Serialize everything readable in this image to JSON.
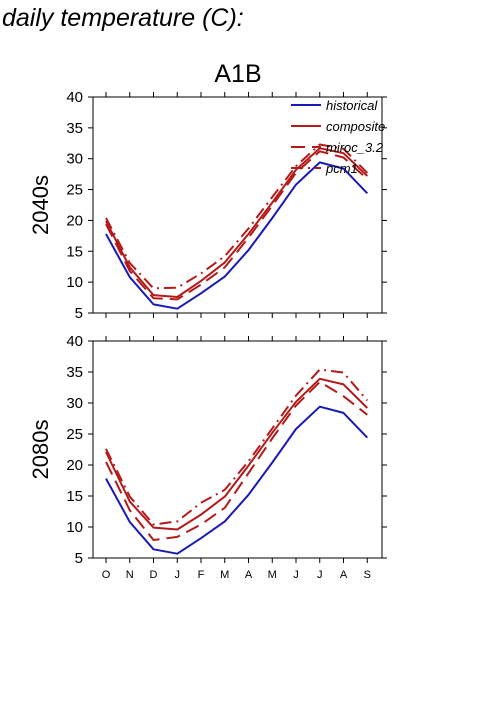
{
  "page": {
    "title": "daily temperature (C):"
  },
  "colors": {
    "historical": "#1a1ab4",
    "projections": "#b41a1a"
  },
  "chart_data": [
    {
      "type": "line",
      "title": "A1B",
      "row_label": "2040s",
      "ylim": [
        5,
        40
      ],
      "yticks": [
        5,
        10,
        15,
        20,
        25,
        30,
        35,
        40
      ],
      "categories": [
        "O",
        "N",
        "D",
        "J",
        "F",
        "M",
        "A",
        "M",
        "J",
        "J",
        "A",
        "S"
      ],
      "legend": {
        "placement": "top-right"
      },
      "series": [
        {
          "name": "historical",
          "style": "solid",
          "color": "#1a1ab4",
          "values": [
            17.8,
            10.8,
            6.4,
            5.7,
            8.2,
            10.9,
            15.2,
            20.4,
            25.8,
            29.4,
            28.4,
            24.4
          ]
        },
        {
          "name": "composite",
          "style": "solid",
          "color": "#b41a1a",
          "values": [
            19.9,
            12.4,
            7.9,
            7.6,
            10.2,
            13.2,
            17.8,
            22.9,
            28.2,
            31.7,
            30.9,
            27.2
          ]
        },
        {
          "name": "miroc_3.2",
          "style": "dashed",
          "color": "#b41a1a",
          "values": [
            19.4,
            11.8,
            7.4,
            7.2,
            9.6,
            12.4,
            17.2,
            22.4,
            27.7,
            31.2,
            30.2,
            26.7
          ]
        },
        {
          "name": "pcm1",
          "style": "dashdot",
          "color": "#b41a1a",
          "values": [
            20.4,
            13.1,
            9.0,
            9.1,
            11.4,
            14.2,
            18.7,
            23.8,
            28.8,
            32.3,
            31.6,
            27.7
          ]
        }
      ]
    },
    {
      "type": "line",
      "title": "",
      "row_label": "2080s",
      "ylim": [
        5,
        40
      ],
      "yticks": [
        5,
        10,
        15,
        20,
        25,
        30,
        35,
        40
      ],
      "categories": [
        "O",
        "N",
        "D",
        "J",
        "F",
        "M",
        "A",
        "M",
        "J",
        "J",
        "A",
        "S"
      ],
      "series": [
        {
          "name": "historical",
          "style": "solid",
          "color": "#1a1ab4",
          "values": [
            17.8,
            10.8,
            6.4,
            5.7,
            8.2,
            10.9,
            15.2,
            20.4,
            25.8,
            29.4,
            28.4,
            24.4
          ]
        },
        {
          "name": "composite",
          "style": "solid",
          "color": "#b41a1a",
          "values": [
            22.1,
            14.1,
            9.9,
            9.6,
            12.0,
            14.9,
            19.9,
            25.2,
            30.2,
            33.9,
            33.0,
            29.2
          ]
        },
        {
          "name": "miroc_3.2",
          "style": "dashed",
          "color": "#b41a1a",
          "values": [
            20.5,
            12.7,
            7.9,
            8.4,
            10.4,
            13.1,
            18.7,
            24.3,
            29.6,
            33.4,
            31.1,
            28.1
          ]
        },
        {
          "name": "pcm1",
          "style": "dashdot",
          "color": "#b41a1a",
          "values": [
            22.6,
            14.9,
            10.4,
            10.9,
            13.9,
            16.0,
            20.6,
            25.9,
            31.2,
            35.4,
            34.9,
            30.4
          ]
        }
      ]
    }
  ]
}
